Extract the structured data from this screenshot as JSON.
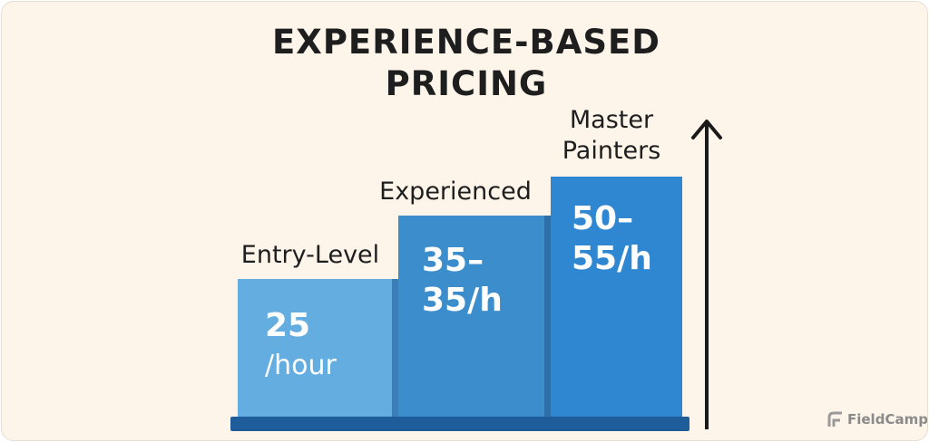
{
  "header": {
    "title": "EXPERIENCE-BASED PRICING"
  },
  "tiers": [
    {
      "label": "Entry-Level",
      "price_lines": [
        "25",
        "/hour"
      ]
    },
    {
      "label": "Experienced",
      "price_lines": [
        "35–",
        "35/h"
      ]
    },
    {
      "label": "Master Painters",
      "price_lines": [
        "50–",
        "55/h"
      ]
    }
  ],
  "footer": {
    "brand": "FieldCamp"
  }
}
